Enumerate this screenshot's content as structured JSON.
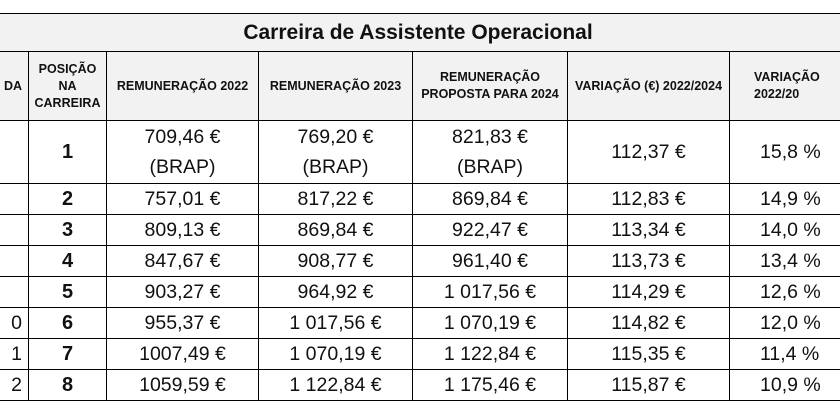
{
  "title": "Carreira de Assistente Operacional",
  "headers": [
    "DA",
    "POSIÇÃO NA CARREIRA",
    "REMUNERAÇÃO 2022",
    "REMUNERAÇÃO 2023",
    "REMUNERAÇÃO PROPOSTA PARA 2024",
    "VARIAÇÃO (€) 2022/2024",
    "VARIAÇÃO 2022/20"
  ],
  "rows": [
    {
      "c0": "",
      "pos": "1",
      "r2022": "709,46 €",
      "r2022b": "(BRAP)",
      "r2023": "769,20 €",
      "r2023b": "(BRAP)",
      "r2024": "821,83 €",
      "r2024b": "(BRAP)",
      "var_eur": "112,37 €",
      "var_pct": "15,8 %"
    },
    {
      "c0": "",
      "pos": "2",
      "r2022": "757,01 €",
      "r2023": "817,22 €",
      "r2024": "869,84 €",
      "var_eur": "112,83 €",
      "var_pct": "14,9 %"
    },
    {
      "c0": "",
      "pos": "3",
      "r2022": "809,13 €",
      "r2023": "869,84 €",
      "r2024": "922,47 €",
      "var_eur": "113,34 €",
      "var_pct": "14,0 %"
    },
    {
      "c0": "",
      "pos": "4",
      "r2022": "847,67 €",
      "r2023": "908,77 €",
      "r2024": "961,40 €",
      "var_eur": "113,73 €",
      "var_pct": "13,4 %"
    },
    {
      "c0": "",
      "pos": "5",
      "r2022": "903,27 €",
      "r2023": "964,92 €",
      "r2024": "1 017,56 €",
      "var_eur": "114,29 €",
      "var_pct": "12,6 %"
    },
    {
      "c0": "0",
      "pos": "6",
      "r2022": "955,37 €",
      "r2023": "1 017,56 €",
      "r2024": "1 070,19 €",
      "var_eur": "114,82 €",
      "var_pct": "12,0 %"
    },
    {
      "c0": "1",
      "pos": "7",
      "r2022": "1007,49 €",
      "r2023": "1 070,19 €",
      "r2024": "1 122,84 €",
      "var_eur": "115,35 €",
      "var_pct": "11,4 %"
    },
    {
      "c0": "2",
      "pos": "8",
      "r2022": "1059,59 €",
      "r2023": "1 122,84 €",
      "r2024": "1 175,46 €",
      "var_eur": "115,87 €",
      "var_pct": "10,9 %"
    }
  ]
}
